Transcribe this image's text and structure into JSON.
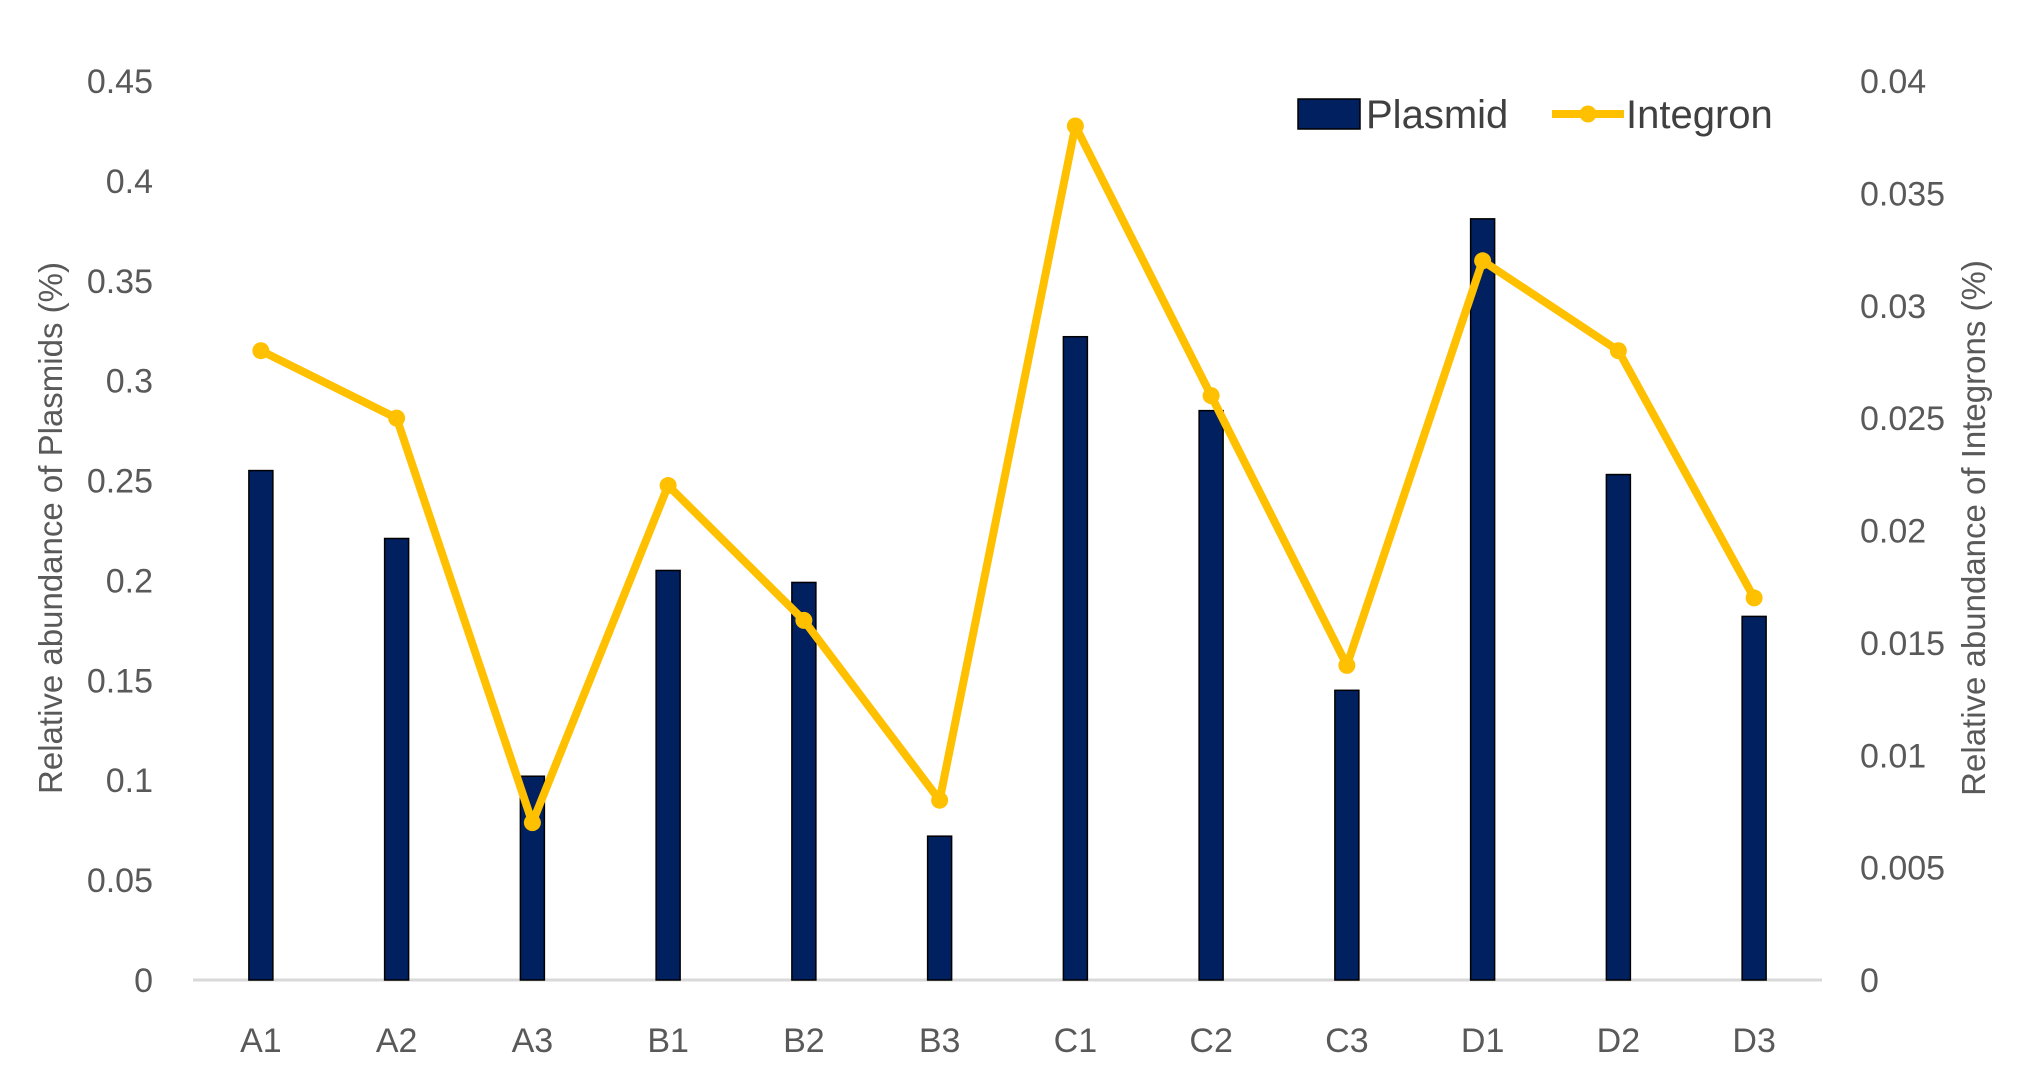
{
  "chart_data": {
    "type": "bar",
    "categories": [
      "A1",
      "A2",
      "A3",
      "B1",
      "B2",
      "B3",
      "C1",
      "C2",
      "C3",
      "D1",
      "D2",
      "D3"
    ],
    "series": [
      {
        "name": "Plasmid",
        "type": "bar",
        "axis": "left",
        "color": "#002060",
        "values": [
          0.255,
          0.221,
          0.102,
          0.205,
          0.199,
          0.072,
          0.322,
          0.285,
          0.145,
          0.381,
          0.253,
          0.182
        ]
      },
      {
        "name": "Integron",
        "type": "line",
        "axis": "right",
        "color": "#FFC000",
        "values": [
          0.028,
          0.025,
          0.007,
          0.022,
          0.016,
          0.008,
          0.038,
          0.026,
          0.014,
          0.032,
          0.028,
          0.017
        ]
      }
    ],
    "ylabel": "Relative abundance  of Plasmids (%)",
    "y2label": "Relative abundance  of Integrons (%)",
    "ylim": [
      0,
      0.45
    ],
    "y2lim": [
      0,
      0.04
    ],
    "yticks": [
      "0",
      "0.05",
      "0.1",
      "0.15",
      "0.2",
      "0.25",
      "0.3",
      "0.35",
      "0.4",
      "0.45"
    ],
    "y2ticks": [
      "0",
      "0.005",
      "0.01",
      "0.015",
      "0.02",
      "0.025",
      "0.03",
      "0.035",
      "0.04"
    ],
    "legend_position": "top-right",
    "grid": false
  }
}
